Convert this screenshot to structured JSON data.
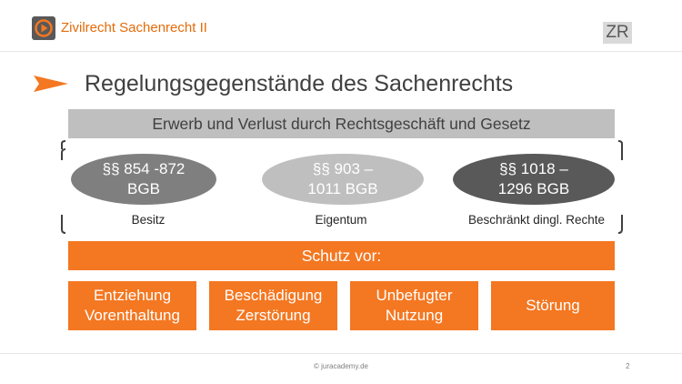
{
  "header": {
    "title": "Zivilrecht Sachenrecht II",
    "badge": "ZR"
  },
  "slide": {
    "title": "Regelungsgegenstände des Sachenrechts",
    "gray_banner": "Erwerb und Verlust durch Rechtsgeschäft und Gesetz",
    "ellipses": [
      {
        "line1": "§§ 854 -872",
        "line2": "BGB",
        "label": "Besitz"
      },
      {
        "line1": "§§ 903 –",
        "line2": "1011  BGB",
        "label": "Eigentum"
      },
      {
        "line1": "§§ 1018 –",
        "line2": "1296 BGB",
        "label": "Beschränkt dingl. Rechte"
      }
    ],
    "orange_banner": "Schutz vor:",
    "boxes": [
      {
        "line1": "Entziehung",
        "line2": "Vorenthaltung"
      },
      {
        "line1": "Beschädigung",
        "line2": "Zerstörung"
      },
      {
        "line1": "Unbefugter",
        "line2": "Nutzung"
      },
      {
        "line1": "Störung",
        "line2": ""
      }
    ]
  },
  "footer": {
    "copyright": "© juracademy.de",
    "page": "2"
  },
  "colors": {
    "accent": "#F47721",
    "header_text": "#E36C0A",
    "gray": "#BFBFBF",
    "dark_gray": "#595959"
  }
}
